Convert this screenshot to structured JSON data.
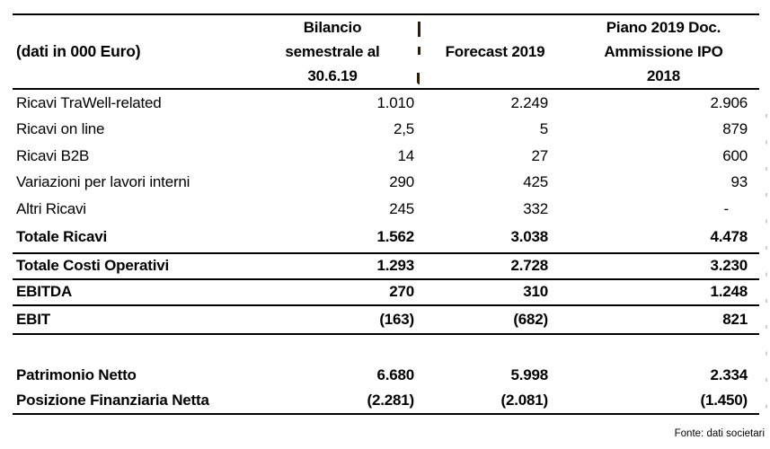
{
  "colors": {
    "text": "#000000",
    "line": "#000000",
    "tick": "#c4c4c4",
    "background": "#ffffff"
  },
  "header": {
    "unit_label": "(dati in 000 Euro)",
    "col2_lines": [
      "Bilancio",
      "semestrale al",
      "30.6.19"
    ],
    "col3_label": "Forecast 2019",
    "col4_lines": [
      "Piano 2019 Doc.",
      "Ammissione IPO",
      "2018"
    ]
  },
  "rows": [
    {
      "label": "Ricavi TraWell-related",
      "v1": "1.010",
      "v2": "2.249",
      "v3": "2.906"
    },
    {
      "label": "Ricavi on line",
      "v1": "2,5",
      "v2": "5",
      "v3": "879"
    },
    {
      "label": "Ricavi B2B",
      "v1": "14",
      "v2": "27",
      "v3": "600"
    },
    {
      "label": "Variazioni per lavori interni",
      "v1": "290",
      "v2": "425",
      "v3": "93"
    },
    {
      "label": "Altri Ricavi",
      "v1": "245",
      "v2": "332",
      "v3": "-"
    },
    {
      "label": "Totale Ricavi",
      "v1": "1.562",
      "v2": "3.038",
      "v3": "4.478"
    },
    {
      "label": "Totale Costi Operativi",
      "v1": "1.293",
      "v2": "2.728",
      "v3": "3.230"
    },
    {
      "label": "EBITDA",
      "v1": "270",
      "v2": "310",
      "v3": "1.248"
    },
    {
      "label": "EBIT",
      "v1": "(163)",
      "v2": "(682)",
      "v3": "821"
    },
    {
      "label": "Patrimonio Netto",
      "v1": "6.680",
      "v2": "5.998",
      "v3": "2.334"
    },
    {
      "label": "Posizione Finanziaria Netta",
      "v1": "(2.281)",
      "v2": "(2.081)",
      "v3": "(1.450)"
    }
  ],
  "footer": {
    "source": "Fonte: dati societari"
  }
}
